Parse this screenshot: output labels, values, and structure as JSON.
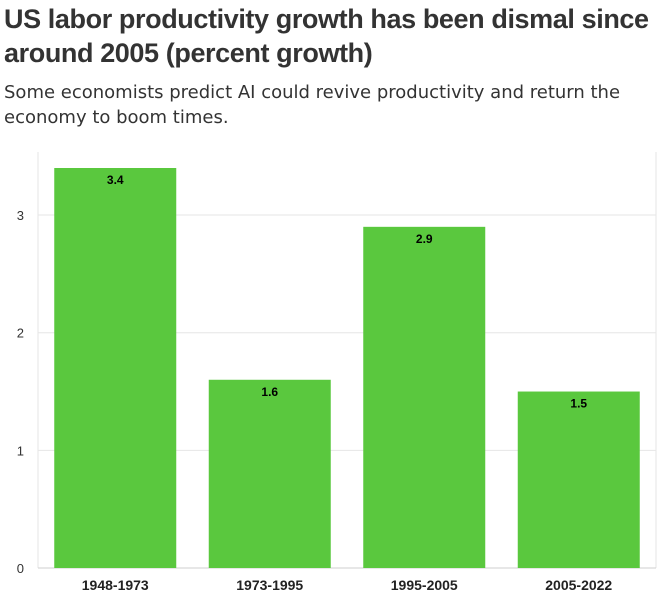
{
  "chart_data": {
    "type": "bar",
    "title": "US labor productivity growth has been dismal since around 2005 (percent growth)",
    "subtitle": "Some economists predict AI could revive productivity and return the economy to boom times.",
    "categories": [
      "1948-1973",
      "1973-1995",
      "1995-2005",
      "2005-2022"
    ],
    "values": [
      3.4,
      1.6,
      2.9,
      1.5
    ],
    "data_labels": [
      "3.4",
      "1.6",
      "2.9",
      "1.5"
    ],
    "xlabel": "",
    "ylabel": "",
    "ylim": [
      0,
      3.4
    ],
    "yticks": [
      0,
      1,
      2,
      3
    ],
    "grid": true,
    "bar_color": "#5ac83e"
  }
}
